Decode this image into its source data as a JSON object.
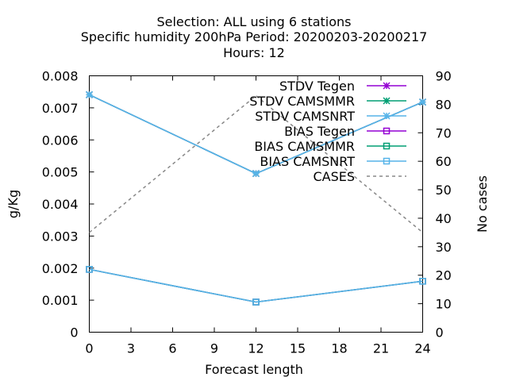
{
  "title": {
    "line1": "Selection: ALL using     6 stations",
    "line2": "Specific humidity 200hPa   Period: 20200203-20200217",
    "line3": "Hours:  12"
  },
  "chart_data": {
    "type": "line",
    "xlabel": "Forecast length",
    "ylabel": "g/Kg",
    "y2label": "No cases",
    "xlim": [
      0,
      24
    ],
    "ylim": [
      0,
      0.008
    ],
    "y2lim": [
      0,
      90
    ],
    "x_ticks": [
      "0",
      "3",
      "6",
      "9",
      "12",
      "15",
      "18",
      "21",
      "24"
    ],
    "y_ticks": [
      "0",
      "0.001",
      "0.002",
      "0.003",
      "0.004",
      "0.005",
      "0.006",
      "0.007",
      "0.008"
    ],
    "y2_ticks": [
      "0",
      "10",
      "20",
      "30",
      "40",
      "50",
      "60",
      "70",
      "80",
      "90"
    ],
    "grid": false,
    "legend_position": "top-right",
    "series": [
      {
        "name": "STDV Tegen",
        "axis": "y",
        "color": "#9400d3",
        "marker": "star",
        "dash": false,
        "x": [
          0,
          12,
          24
        ],
        "values": [
          0.00741,
          0.00495,
          0.00718
        ]
      },
      {
        "name": "STDV CAMSMMR",
        "axis": "y",
        "color": "#009e73",
        "marker": "star",
        "dash": false,
        "x": [
          0,
          12,
          24
        ],
        "values": [
          0.00741,
          0.00495,
          0.00718
        ]
      },
      {
        "name": "STDV CAMSNRT",
        "axis": "y",
        "color": "#56b4e9",
        "marker": "star",
        "dash": false,
        "x": [
          0,
          12,
          24
        ],
        "values": [
          0.00741,
          0.00495,
          0.00718
        ]
      },
      {
        "name": "BIAS Tegen",
        "axis": "y",
        "color": "#9400d3",
        "marker": "square",
        "dash": false,
        "x": [
          0,
          12,
          24
        ],
        "values": [
          0.00196,
          0.00094,
          0.00159
        ]
      },
      {
        "name": "BIAS CAMSMMR",
        "axis": "y",
        "color": "#009e73",
        "marker": "square",
        "dash": false,
        "x": [
          0,
          12,
          24
        ],
        "values": [
          0.00196,
          0.00094,
          0.00159
        ]
      },
      {
        "name": "BIAS CAMSNRT",
        "axis": "y",
        "color": "#56b4e9",
        "marker": "square",
        "dash": false,
        "x": [
          0,
          12,
          24
        ],
        "values": [
          0.00196,
          0.00094,
          0.00159
        ]
      },
      {
        "name": "CASES",
        "axis": "y2",
        "color": "#888888",
        "marker": "none",
        "dash": true,
        "x": [
          0,
          12,
          24
        ],
        "values": [
          35,
          83,
          35
        ]
      }
    ]
  }
}
